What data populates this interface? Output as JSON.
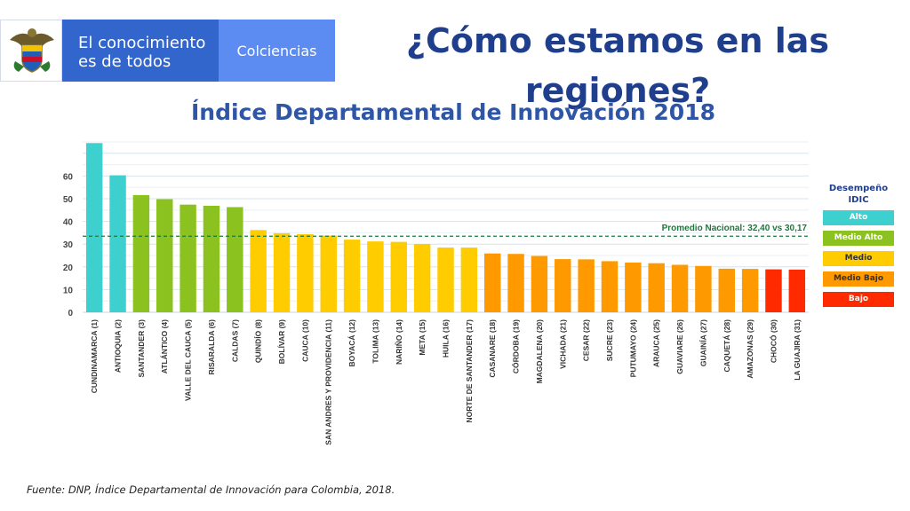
{
  "header": {
    "brand_line1": "El conocimiento",
    "brand_line2": "es de todos",
    "entity": "Colciencias",
    "brand_color": "#3366cc",
    "entity_color": "#5c8cf2"
  },
  "slide": {
    "title": "¿Cómo estamos en las regiones?"
  },
  "legend": {
    "title_line1": "Desempeño",
    "title_line2": "IDIC",
    "items": [
      {
        "label": "Alto",
        "color": "#3ecfcf"
      },
      {
        "label": "Medio Alto",
        "color": "#8cc21f"
      },
      {
        "label": "Medio",
        "color": "#ffcc00"
      },
      {
        "label": "Medio Bajo",
        "color": "#ff9900"
      },
      {
        "label": "Bajo",
        "color": "#ff2a00"
      }
    ]
  },
  "source": "Fuente: DNP, Índice Departamental de Innovación para Colombia, 2018.",
  "chart_data": {
    "type": "bar",
    "title": "Índice Departamental de Innovación 2018",
    "ylim": [
      0,
      75
    ],
    "yticks": [
      0,
      10,
      20,
      30,
      40,
      50,
      60
    ],
    "grid": true,
    "legend_position": "right",
    "reference_line": {
      "value": 33.5,
      "label": "Promedio Nacional:  32,40  vs  30,17",
      "color": "#1a7a3a"
    },
    "categories": [
      "CUNDINAMARCA (1)",
      "ANTIOQUIA (2)",
      "SANTANDER (3)",
      "ATLÁNTICO (4)",
      "VALLE DEL CAUCA (5)",
      "RISARALDA (6)",
      "CALDAS (7)",
      "QUINDÍO (8)",
      "BOLÍVAR (9)",
      "CAUCA (10)",
      "SAN ANDRES Y PROVIDENCIA (11)",
      "BOYACÁ (12)",
      "TOLIMA (13)",
      "NARIÑO (14)",
      "META (15)",
      "HUILA (16)",
      "NORTE DE SANTANDER (17)",
      "CASANARE (18)",
      "CÓRDOBA (19)",
      "MAGDALENA (20)",
      "VICHADA (21)",
      "CESAR (22)",
      "SUCRE (23)",
      "PUTUMAYO (24)",
      "ARAUCA (25)",
      "GUAVIARE (26)",
      "GUAINÍA (27)",
      "CAQUETÁ (28)",
      "AMAZONAS (29)",
      "CHOCÓ (30)",
      "LA GUAJIRA (31)"
    ],
    "values": [
      74.5,
      60.3,
      51.6,
      49.8,
      47.4,
      46.9,
      46.3,
      36.2,
      34.8,
      34.4,
      33.8,
      32.0,
      31.2,
      31.0,
      30.1,
      28.5,
      28.5,
      25.9,
      25.7,
      24.8,
      23.4,
      23.3,
      22.5,
      21.9,
      21.6,
      20.9,
      20.4,
      19.2,
      19.1,
      18.9,
      18.8
    ],
    "levels": [
      "Alto",
      "Alto",
      "Medio Alto",
      "Medio Alto",
      "Medio Alto",
      "Medio Alto",
      "Medio Alto",
      "Medio",
      "Medio",
      "Medio",
      "Medio",
      "Medio",
      "Medio",
      "Medio",
      "Medio",
      "Medio",
      "Medio",
      "Medio Bajo",
      "Medio Bajo",
      "Medio Bajo",
      "Medio Bajo",
      "Medio Bajo",
      "Medio Bajo",
      "Medio Bajo",
      "Medio Bajo",
      "Medio Bajo",
      "Medio Bajo",
      "Medio Bajo",
      "Medio Bajo",
      "Bajo",
      "Bajo"
    ]
  }
}
